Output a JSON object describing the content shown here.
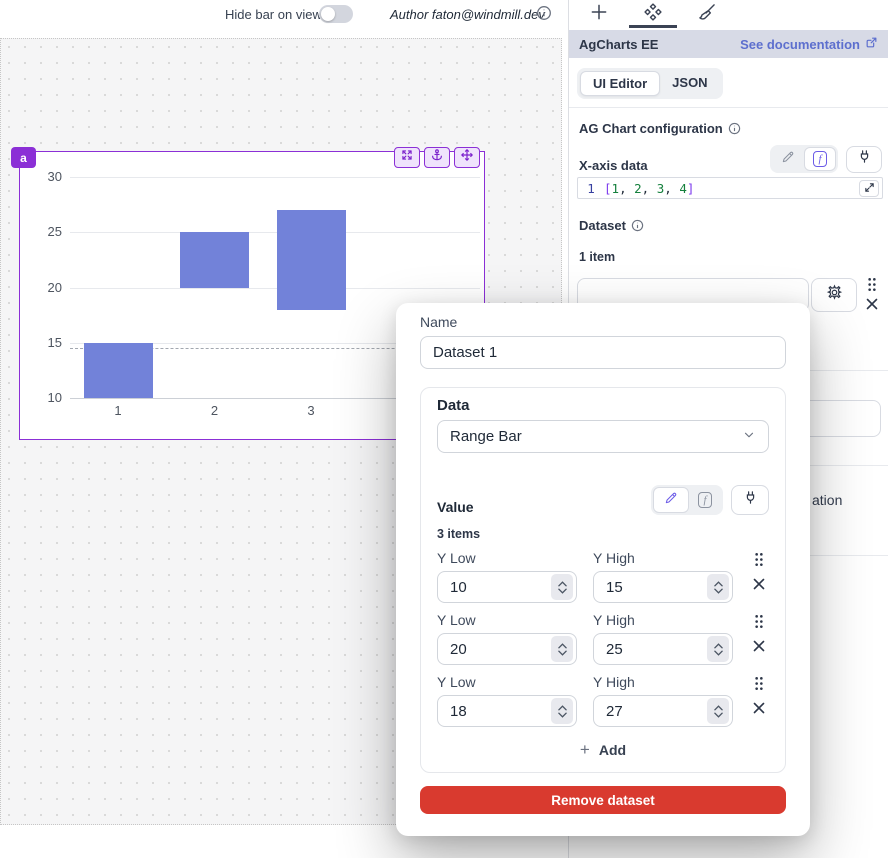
{
  "topbar": {
    "hide_bar_label": "Hide bar on view",
    "toggle_state": "off",
    "author_label": "Author faton@windmill.dev"
  },
  "canvas": {
    "component_id": "a",
    "component_actions": [
      "expand-icon",
      "anchor-icon",
      "move-icon"
    ]
  },
  "panel": {
    "tabs": [
      {
        "icon": "plus-icon",
        "active": false
      },
      {
        "icon": "components-icon",
        "active": true
      },
      {
        "icon": "brush-icon",
        "active": false
      }
    ],
    "header": {
      "title": "AgCharts EE",
      "doc_link": "See documentation"
    },
    "view_tabs": {
      "ui": "UI Editor",
      "json": "JSON"
    },
    "config_label": "AG Chart configuration",
    "xaxis": {
      "label": "X-axis data",
      "line_number": "1",
      "code": "[1, 2, 3, 4]",
      "code_tokens": [
        {
          "text": "[",
          "type": "bracket"
        },
        {
          "text": "1",
          "type": "num"
        },
        {
          "text": ", ",
          "type": "punct"
        },
        {
          "text": "2",
          "type": "num"
        },
        {
          "text": ", ",
          "type": "punct"
        },
        {
          "text": "3",
          "type": "num"
        },
        {
          "text": ", ",
          "type": "punct"
        },
        {
          "text": "4",
          "type": "num"
        },
        {
          "text": "]",
          "type": "bracket"
        }
      ],
      "mode": "function"
    },
    "dataset": {
      "label": "Dataset",
      "count": "1 item"
    },
    "clipped_text": "ation"
  },
  "modal": {
    "name_label": "Name",
    "name_value": "Dataset 1",
    "data_label": "Data",
    "data_type": "Range Bar",
    "value_label": "Value",
    "value_mode": "static",
    "items_count": "3 items",
    "row_label_low": "Y Low",
    "row_label_high": "Y High",
    "items": [
      {
        "y_low": "10",
        "y_high": "15"
      },
      {
        "y_low": "20",
        "y_high": "25"
      },
      {
        "y_low": "18",
        "y_high": "27"
      }
    ],
    "add_label": "Add",
    "remove_label": "Remove dataset"
  },
  "chart_data": {
    "type": "bar",
    "subtype": "range-bar",
    "x": [
      1,
      2,
      3,
      4
    ],
    "series": [
      {
        "name": "Dataset 1",
        "values": [
          {
            "x": 1,
            "y_low": 10,
            "y_high": 15
          },
          {
            "x": 2,
            "y_low": 20,
            "y_high": 25
          },
          {
            "x": 3,
            "y_low": 18,
            "y_high": 27
          }
        ]
      }
    ],
    "title": "",
    "xlabel": "",
    "ylabel": "",
    "ylim": [
      10,
      30
    ],
    "yticks": [
      10,
      15,
      20,
      25,
      30
    ],
    "grid": true,
    "legend": "none",
    "bar_color": "#7282d9",
    "crosshair_y": 14.5
  },
  "colors": {
    "selection_purple": "#8b2fd6",
    "selection_bg": "#efe3fc",
    "bar_blue": "#7282d9",
    "link_blue": "#5d6fce",
    "danger_red": "#d93a2f",
    "panel_header_bg": "#d7dae6",
    "code_number_green": "#15803d",
    "code_bracket_purple": "#7c3aed",
    "code_lineno_blue": "#3740a0"
  }
}
